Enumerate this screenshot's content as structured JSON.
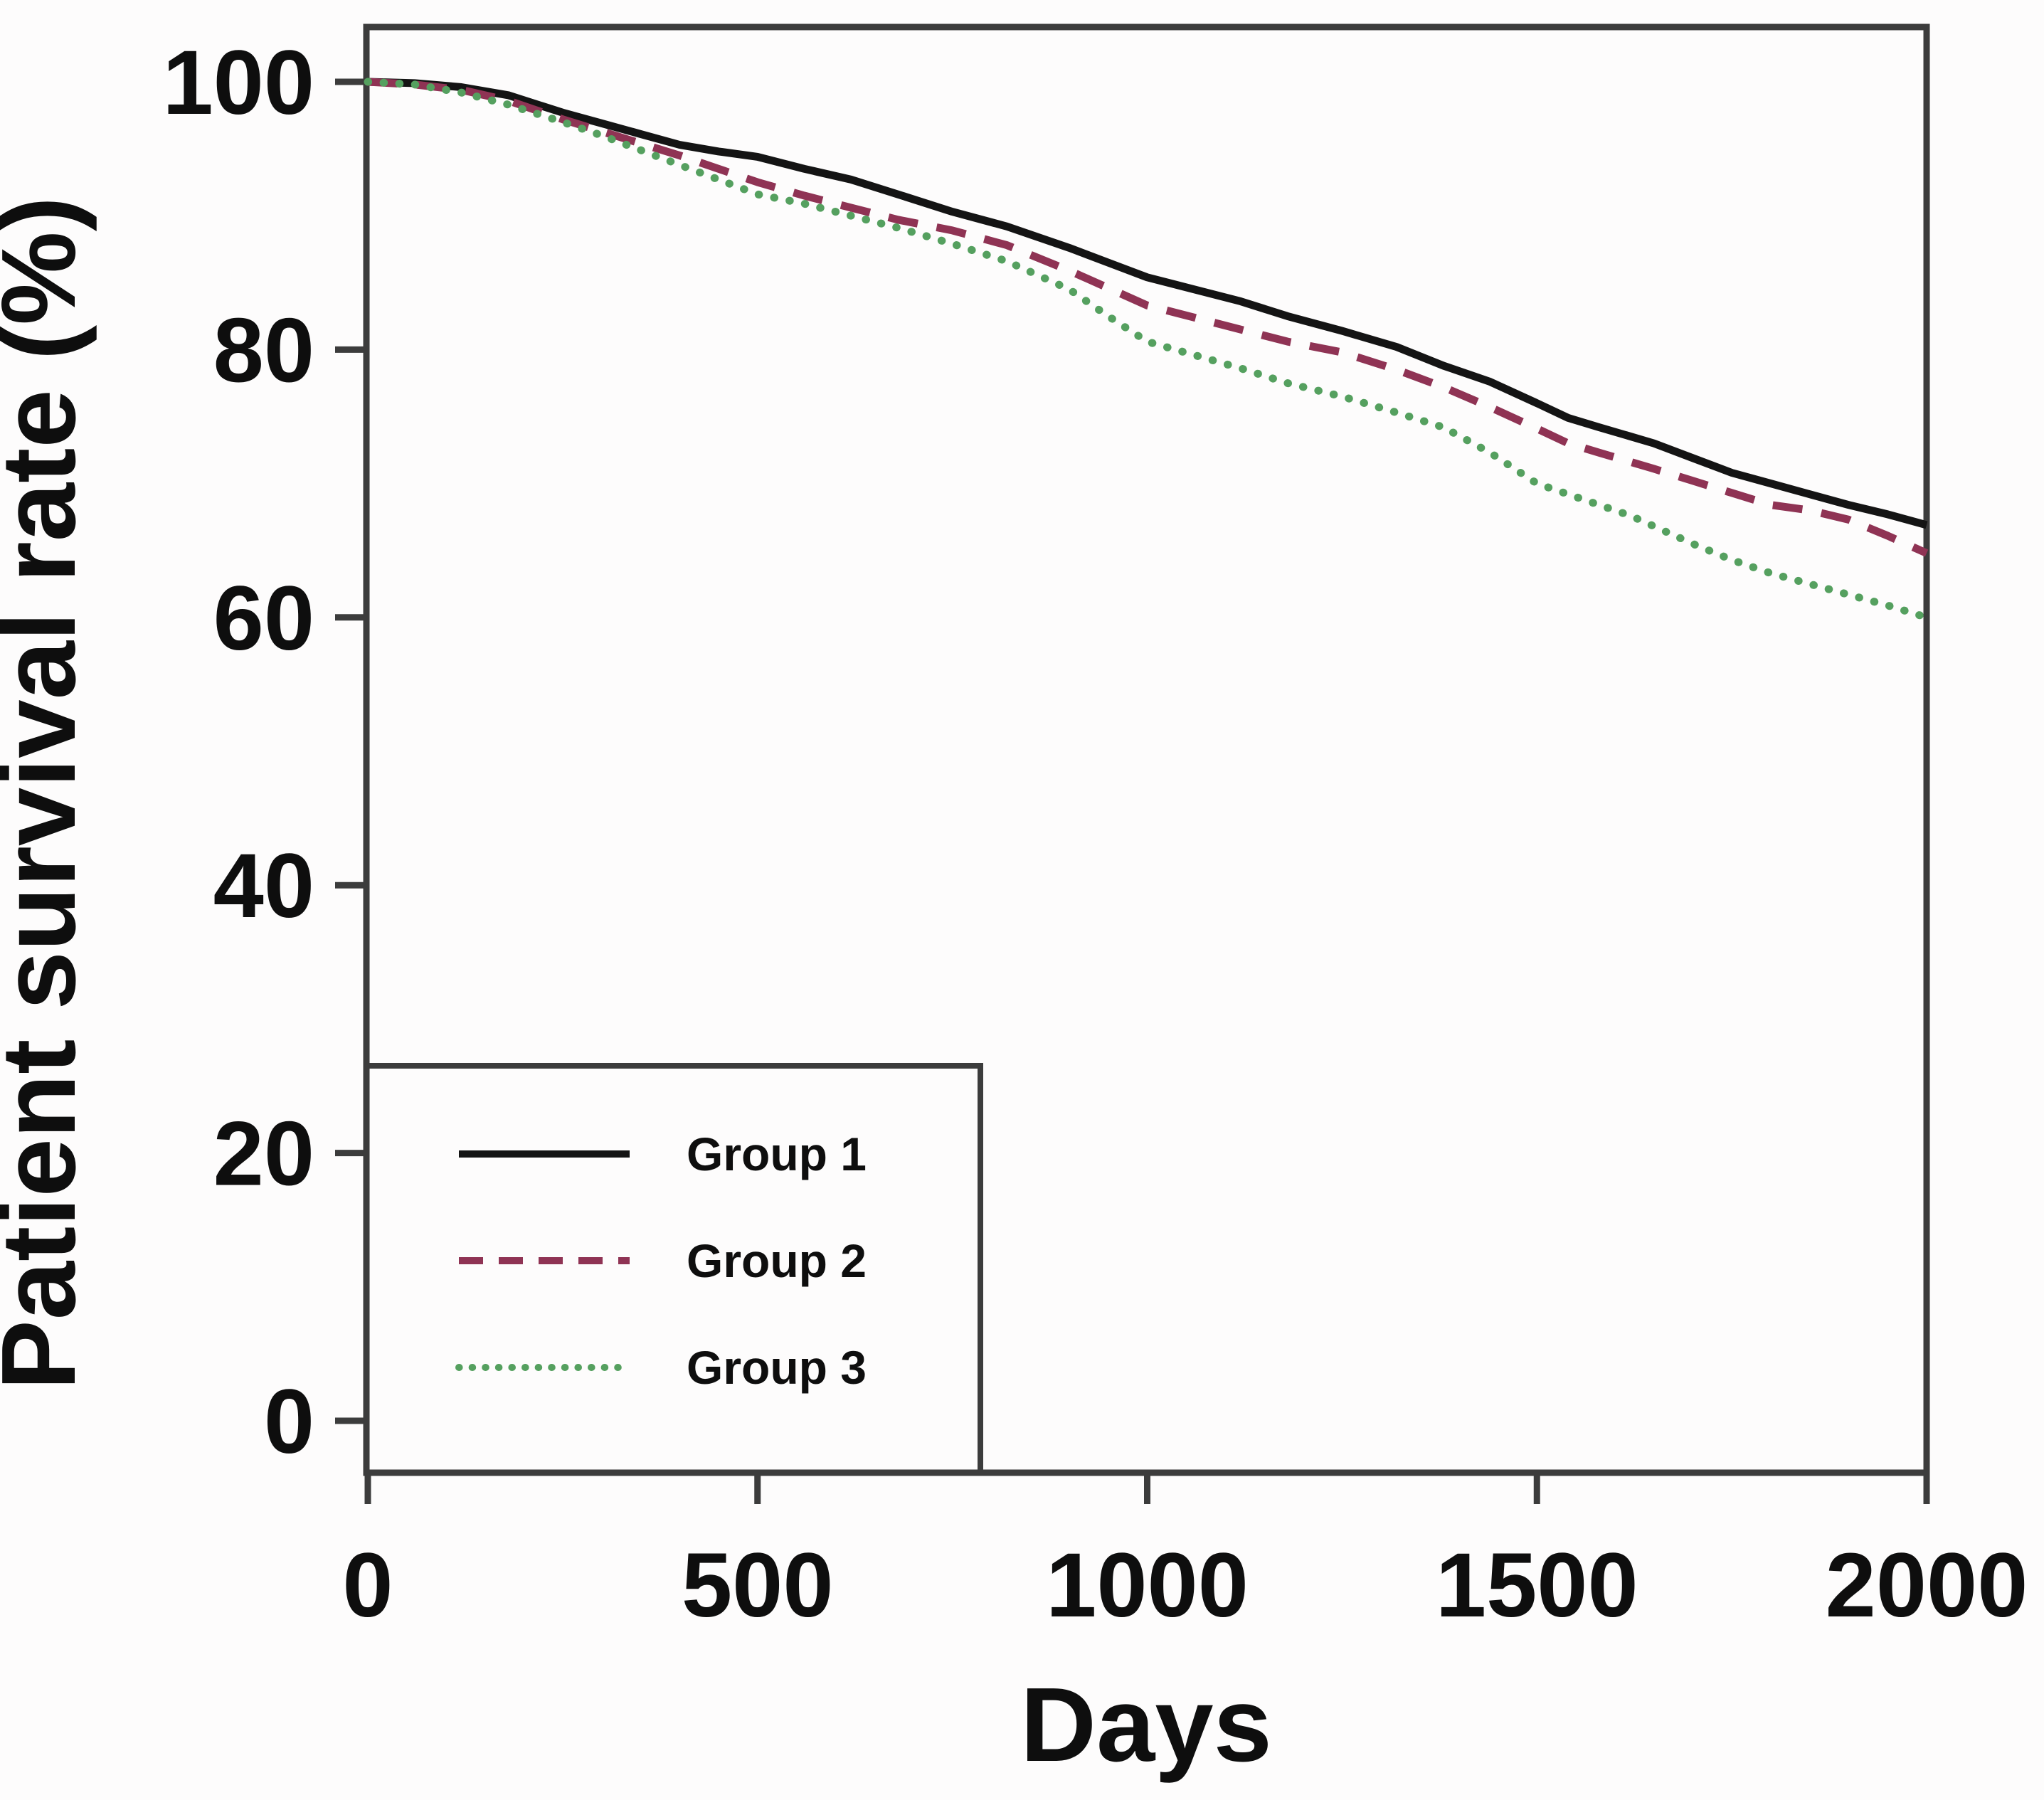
{
  "figure": {
    "y_axis_title": "Patient survival rate (%)",
    "x_axis_title": "Days",
    "y_ticks": [
      "100",
      "80",
      "60",
      "40",
      "20",
      "0"
    ],
    "x_ticks": [
      "0",
      "500",
      "1000",
      "1500",
      "2000"
    ]
  },
  "legend": {
    "items": [
      {
        "label": "Group 1",
        "style": "solid",
        "color": "#141414"
      },
      {
        "label": "Group 2",
        "style": "dashed",
        "color": "#8f3354"
      },
      {
        "label": "Group 3",
        "style": "dotted",
        "color": "#55a05f"
      }
    ]
  },
  "chart_data": {
    "type": "line",
    "title": "",
    "xlabel": "Days",
    "ylabel": "Patient survival rate (%)",
    "xlim": [
      0,
      2000
    ],
    "ylim": [
      0,
      100
    ],
    "x_tick_values": [
      0,
      500,
      1000,
      1500,
      2000
    ],
    "y_tick_values": [
      100,
      80,
      60,
      40,
      20,
      0
    ],
    "grid": false,
    "legend_position": "lower-left",
    "series": [
      {
        "name": "Group 1",
        "line_style": "solid",
        "color": "#141414",
        "points": [
          [
            0,
            100
          ],
          [
            60,
            99.9
          ],
          [
            120,
            99.6
          ],
          [
            180,
            99.0
          ],
          [
            250,
            97.7
          ],
          [
            300,
            96.9
          ],
          [
            350,
            96.1
          ],
          [
            400,
            95.3
          ],
          [
            450,
            94.8
          ],
          [
            500,
            94.4
          ],
          [
            560,
            93.5
          ],
          [
            620,
            92.7
          ],
          [
            680,
            91.6
          ],
          [
            750,
            90.3
          ],
          [
            820,
            89.2
          ],
          [
            900,
            87.6
          ],
          [
            950,
            86.5
          ],
          [
            1000,
            85.4
          ],
          [
            1060,
            84.5
          ],
          [
            1120,
            83.6
          ],
          [
            1180,
            82.5
          ],
          [
            1250,
            81.4
          ],
          [
            1320,
            80.2
          ],
          [
            1380,
            78.8
          ],
          [
            1440,
            77.6
          ],
          [
            1500,
            76.0
          ],
          [
            1540,
            74.9
          ],
          [
            1580,
            74.2
          ],
          [
            1650,
            73.0
          ],
          [
            1700,
            71.9
          ],
          [
            1750,
            70.8
          ],
          [
            1800,
            70.0
          ],
          [
            1850,
            69.2
          ],
          [
            1900,
            68.4
          ],
          [
            1950,
            67.7
          ],
          [
            2000,
            66.9
          ]
        ]
      },
      {
        "name": "Group 2",
        "line_style": "dashed",
        "color": "#8f3354",
        "points": [
          [
            0,
            100
          ],
          [
            60,
            99.8
          ],
          [
            120,
            99.4
          ],
          [
            180,
            98.6
          ],
          [
            250,
            97.2
          ],
          [
            300,
            96.3
          ],
          [
            350,
            95.4
          ],
          [
            400,
            94.5
          ],
          [
            450,
            93.5
          ],
          [
            500,
            92.5
          ],
          [
            560,
            91.5
          ],
          [
            620,
            90.6
          ],
          [
            680,
            89.7
          ],
          [
            750,
            88.9
          ],
          [
            820,
            87.8
          ],
          [
            900,
            85.9
          ],
          [
            950,
            84.6
          ],
          [
            1000,
            83.3
          ],
          [
            1060,
            82.4
          ],
          [
            1120,
            81.5
          ],
          [
            1180,
            80.6
          ],
          [
            1250,
            79.8
          ],
          [
            1320,
            78.5
          ],
          [
            1380,
            77.2
          ],
          [
            1440,
            75.7
          ],
          [
            1500,
            74.1
          ],
          [
            1540,
            73.0
          ],
          [
            1580,
            72.3
          ],
          [
            1650,
            71.1
          ],
          [
            1700,
            70.2
          ],
          [
            1750,
            69.3
          ],
          [
            1800,
            68.4
          ],
          [
            1850,
            68.0
          ],
          [
            1900,
            67.3
          ],
          [
            1950,
            66.1
          ],
          [
            2000,
            64.8
          ]
        ]
      },
      {
        "name": "Group 3",
        "line_style": "dotted",
        "color": "#55a05f",
        "points": [
          [
            0,
            100
          ],
          [
            60,
            99.8
          ],
          [
            120,
            99.2
          ],
          [
            180,
            98.3
          ],
          [
            250,
            97.0
          ],
          [
            300,
            96.0
          ],
          [
            350,
            94.9
          ],
          [
            400,
            93.8
          ],
          [
            450,
            92.7
          ],
          [
            500,
            91.6
          ],
          [
            560,
            90.9
          ],
          [
            620,
            90.0
          ],
          [
            680,
            89.1
          ],
          [
            750,
            87.9
          ],
          [
            820,
            86.6
          ],
          [
            900,
            84.5
          ],
          [
            950,
            82.5
          ],
          [
            1000,
            80.6
          ],
          [
            1060,
            79.6
          ],
          [
            1120,
            78.6
          ],
          [
            1180,
            77.5
          ],
          [
            1250,
            76.5
          ],
          [
            1320,
            75.3
          ],
          [
            1380,
            74.2
          ],
          [
            1440,
            72.3
          ],
          [
            1500,
            70.0
          ],
          [
            1560,
            68.8
          ],
          [
            1620,
            67.6
          ],
          [
            1700,
            65.5
          ],
          [
            1750,
            64.3
          ],
          [
            1800,
            63.3
          ],
          [
            1850,
            62.5
          ],
          [
            1900,
            61.7
          ],
          [
            1950,
            60.9
          ],
          [
            2000,
            60.0
          ]
        ]
      }
    ]
  }
}
